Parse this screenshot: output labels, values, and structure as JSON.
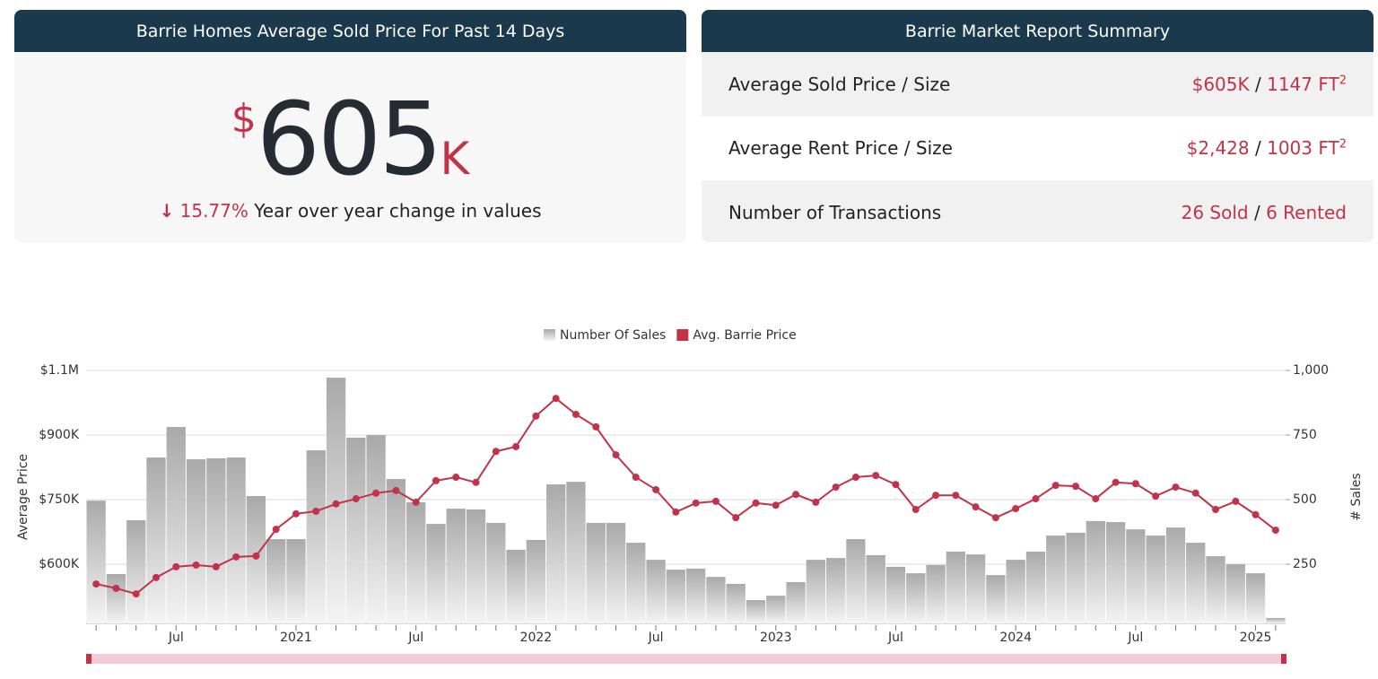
{
  "cards": {
    "price": {
      "title": "Barrie Homes Average Sold Price For Past 14 Days",
      "currency": "$",
      "amount": "605",
      "suffix": "K",
      "arrow": "↓",
      "change": "15.77%",
      "change_text": "Year over year change in values"
    },
    "summary": {
      "title": "Barrie Market Report Summary",
      "separator": "/",
      "rows": [
        {
          "label": "Average Sold Price / Size",
          "left": "$605K",
          "right": "1147 FT",
          "sup": "2"
        },
        {
          "label": "Average Rent Price / Size",
          "left": "$2,428",
          "right": "1003 FT",
          "sup": "2"
        },
        {
          "label": "Number of Transactions",
          "left": "26 Sold",
          "right": "6 Rented"
        }
      ]
    }
  },
  "chart_data": {
    "type": "bar-line",
    "categories": [
      null,
      null,
      null,
      null,
      "Jul",
      null,
      null,
      null,
      null,
      null,
      "2021",
      null,
      null,
      null,
      null,
      null,
      "Jul",
      null,
      null,
      null,
      null,
      null,
      "2022",
      null,
      null,
      null,
      null,
      null,
      "Jul",
      null,
      null,
      null,
      null,
      null,
      "2023",
      null,
      null,
      null,
      null,
      null,
      "Jul",
      null,
      null,
      null,
      null,
      null,
      "2024",
      null,
      null,
      null,
      null,
      null,
      "Jul",
      null,
      null,
      null,
      null,
      null,
      "2025",
      null
    ],
    "series": [
      {
        "name": "Number Of Sales",
        "type": "bar",
        "axis": "y2",
        "color": "#a9a9a9",
        "values": [
          496,
          212,
          420,
          663,
          781,
          656,
          660,
          663,
          514,
          347,
          347,
          691,
          972,
          740,
          750,
          580,
          490,
          406,
          465,
          462,
          410,
          306,
          344,
          559,
          569,
          410,
          410,
          333,
          267,
          229,
          233,
          201,
          174,
          111,
          128,
          181,
          267,
          274,
          347,
          285,
          240,
          215,
          247,
          299,
          288,
          208,
          267,
          299,
          361,
          372,
          417,
          413,
          385,
          361,
          392,
          333,
          281,
          250,
          215,
          42
        ]
      },
      {
        "name": "Avg. Barrie Price",
        "type": "line",
        "color": "#c2334a",
        "values": [
          554000,
          544000,
          531000,
          569000,
          594000,
          598000,
          594000,
          617000,
          619000,
          681000,
          717000,
          723000,
          740000,
          752000,
          765000,
          771000,
          744000,
          794000,
          802000,
          790000,
          862000,
          873000,
          944000,
          985000,
          948000,
          919000,
          854000,
          802000,
          773000,
          721000,
          742000,
          746000,
          708000,
          742000,
          737000,
          762000,
          744000,
          779000,
          802000,
          806000,
          785000,
          727000,
          760000,
          760000,
          733000,
          708000,
          729000,
          752000,
          783000,
          781000,
          752000,
          790000,
          787000,
          758000,
          779000,
          765000,
          727000,
          746000,
          715000,
          679000
        ]
      }
    ],
    "ylabel": "Average Price",
    "y2label": "# Sales",
    "ylim": [
      462500,
      1050000
    ],
    "yticks": [
      {
        "value": 600000,
        "label": "$600K"
      },
      {
        "value": 750000,
        "label": "$750K"
      },
      {
        "value": 900000,
        "label": "$900K"
      },
      {
        "value": 1050000,
        "label": "$1.1M"
      }
    ],
    "y2lim": [
      21,
      1000
    ],
    "y2ticks": [
      250,
      500,
      750,
      {
        "value": 1000,
        "label": "1,000"
      }
    ],
    "grid": true
  }
}
